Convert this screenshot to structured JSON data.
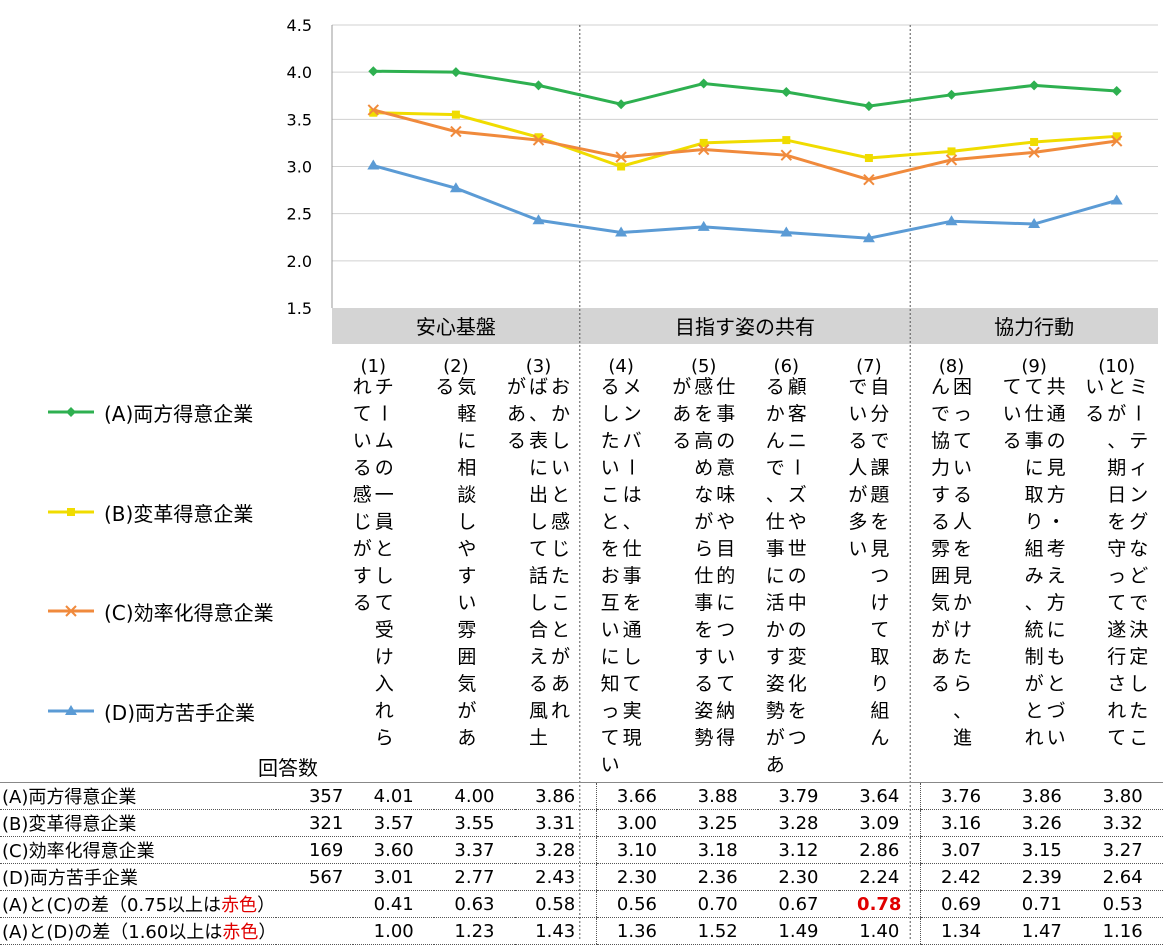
{
  "chart_data": {
    "type": "line",
    "ylim": [
      1.5,
      4.5
    ],
    "yticks": [
      "4.5",
      "4.0",
      "3.5",
      "3.0",
      "2.5",
      "2.0",
      "1.5"
    ],
    "grid": true,
    "legend_position": "left",
    "groups": [
      {
        "label": "安心基盤",
        "span": [
          0,
          2
        ]
      },
      {
        "label": "目指す姿の共有",
        "span": [
          3,
          6
        ]
      },
      {
        "label": "協力行動",
        "span": [
          7,
          9
        ]
      }
    ],
    "categories": [
      {
        "num": "(1)",
        "cols": [
          "れている感じがする",
          "チームの一員として受け入れら"
        ]
      },
      {
        "num": "(2)",
        "cols": [
          "る",
          "気軽に相談しやすい雰囲気があ"
        ]
      },
      {
        "num": "(3)",
        "cols": [
          "がある",
          "ば、表に出して話し合える風土",
          "おかしいと感じたことがあれ"
        ]
      },
      {
        "num": "(4)",
        "cols": [
          "るしたいことをお互いに知ってい",
          "メンバーは、仕事を通して実現"
        ]
      },
      {
        "num": "(5)",
        "cols": [
          "がある",
          "感を高めながら仕事をする姿勢",
          "仕事の意味や目的について納得"
        ]
      },
      {
        "num": "(6)",
        "cols": [
          "るかんで、仕事に活かす姿勢があ",
          "顧客ニーズや世の中の変化をつ"
        ]
      },
      {
        "num": "(7)",
        "cols": [
          "でいる人が多い",
          "自分で課題を見つけて取り組ん"
        ]
      },
      {
        "num": "(8)",
        "cols": [
          "んで協力する雰囲気がある",
          "困っている人を見かけたら、進"
        ]
      },
      {
        "num": "(9)",
        "cols": [
          "ている",
          "て仕事に取り組み、統制がとれ",
          "共通の見方・考え方にもとづい"
        ]
      },
      {
        "num": "(10)",
        "cols": [
          "いる",
          "とが、期日を守って遂行されて",
          "ミーティングなどで決定したこ"
        ]
      }
    ],
    "series": [
      {
        "name": "(A)両方得意企業",
        "color": "#2eb050",
        "marker": "diamond",
        "values": [
          4.01,
          4.0,
          3.86,
          3.66,
          3.88,
          3.79,
          3.64,
          3.76,
          3.86,
          3.8
        ]
      },
      {
        "name": "(B)変革得意企業",
        "color": "#f0dc00",
        "marker": "square",
        "values": [
          3.57,
          3.55,
          3.31,
          3.0,
          3.25,
          3.28,
          3.09,
          3.16,
          3.26,
          3.32
        ]
      },
      {
        "name": "(C)効率化得意企業",
        "color": "#f08a3c",
        "marker": "x",
        "values": [
          3.6,
          3.37,
          3.28,
          3.1,
          3.18,
          3.12,
          2.86,
          3.07,
          3.15,
          3.27
        ]
      },
      {
        "name": "(D)両方苦手企業",
        "color": "#5b9bd5",
        "marker": "triangle",
        "values": [
          3.01,
          2.77,
          2.43,
          2.3,
          2.36,
          2.3,
          2.24,
          2.42,
          2.39,
          2.64
        ]
      }
    ]
  },
  "table": {
    "count_header": "回答数",
    "rows": [
      {
        "label": "(A)両方得意企業",
        "count": "357",
        "values": [
          "4.01",
          "4.00",
          "3.86",
          "3.66",
          "3.88",
          "3.79",
          "3.64",
          "3.76",
          "3.86",
          "3.80"
        ]
      },
      {
        "label": "(B)変革得意企業",
        "count": "321",
        "values": [
          "3.57",
          "3.55",
          "3.31",
          "3.00",
          "3.25",
          "3.28",
          "3.09",
          "3.16",
          "3.26",
          "3.32"
        ]
      },
      {
        "label": "(C)効率化得意企業",
        "count": "169",
        "values": [
          "3.60",
          "3.37",
          "3.28",
          "3.10",
          "3.18",
          "3.12",
          "2.86",
          "3.07",
          "3.15",
          "3.27"
        ]
      },
      {
        "label": "(D)両方苦手企業",
        "count": "567",
        "values": [
          "3.01",
          "2.77",
          "2.43",
          "2.30",
          "2.36",
          "2.30",
          "2.24",
          "2.42",
          "2.39",
          "2.64"
        ]
      },
      {
        "label_pre": "(A)と(C)の差（0.75以上は",
        "label_red": "赤色",
        "label_post": "）",
        "count": "",
        "values": [
          "0.41",
          "0.63",
          "0.58",
          "0.56",
          "0.70",
          "0.67",
          "0.78",
          "0.69",
          "0.71",
          "0.53"
        ],
        "highlight_index": 6
      },
      {
        "label_pre": "(A)と(D)の差（1.60以上は",
        "label_red": "赤色",
        "label_post": "）",
        "count": "",
        "values": [
          "1.00",
          "1.23",
          "1.43",
          "1.36",
          "1.52",
          "1.49",
          "1.40",
          "1.34",
          "1.47",
          "1.16"
        ]
      }
    ]
  }
}
